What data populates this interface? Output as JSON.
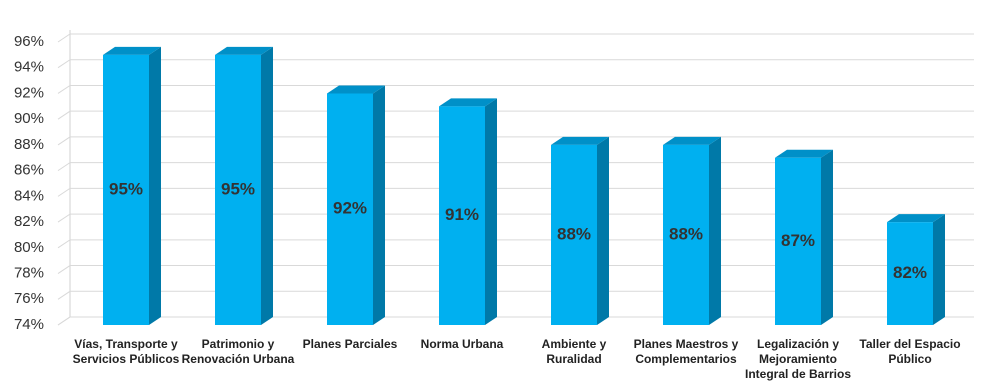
{
  "chart_data": {
    "type": "bar3d",
    "categories": [
      "Vías, Transporte y Servicios Públicos",
      "Patrimonio y Renovación Urbana",
      "Planes Parciales",
      "Norma Urbana",
      "Ambiente y Ruralidad",
      "Planes Maestros y Complementarios",
      "Legalización y Mejoramiento Integral de Barrios",
      "Taller del Espacio Público"
    ],
    "values": [
      95,
      95,
      92,
      91,
      88,
      88,
      87,
      82
    ],
    "value_labels": [
      "95%",
      "95%",
      "92%",
      "91%",
      "88%",
      "88%",
      "87%",
      "82%"
    ],
    "color": "#00b0f0",
    "ylim": [
      74,
      96
    ],
    "yticks": [
      {
        "value": 74,
        "label": "74%"
      },
      {
        "value": 76,
        "label": "76%"
      },
      {
        "value": 78,
        "label": "78%"
      },
      {
        "value": 80,
        "label": "80%"
      },
      {
        "value": 82,
        "label": "82%"
      },
      {
        "value": 84,
        "label": "84%"
      },
      {
        "value": 86,
        "label": "86%"
      },
      {
        "value": 88,
        "label": "88%"
      },
      {
        "value": 90,
        "label": "90%"
      },
      {
        "value": 92,
        "label": "92%"
      },
      {
        "value": 94,
        "label": "94%"
      },
      {
        "value": 96,
        "label": "96%"
      }
    ],
    "grid": true
  }
}
